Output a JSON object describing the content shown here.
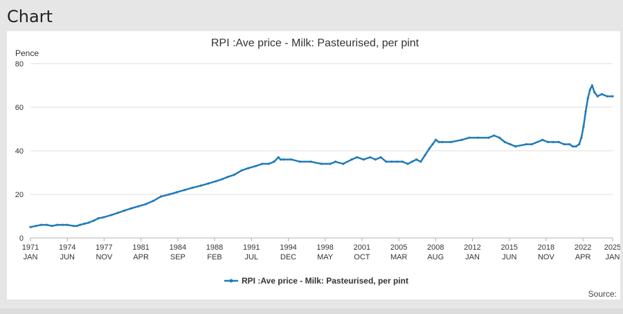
{
  "panel": {
    "heading": "Chart",
    "source_label": "Source:"
  },
  "chart_data": {
    "type": "line",
    "title": "RPI :Ave price - Milk: Pasteurised, per pint",
    "ylabel": "Pence",
    "xlabel": "",
    "ylim": [
      0,
      80
    ],
    "yticks": [
      0,
      20,
      40,
      60,
      80
    ],
    "xlim": [
      1971.0,
      2025.0
    ],
    "xticks": [
      {
        "year": "1971",
        "month": "JAN",
        "x": 1971.0
      },
      {
        "year": "1974",
        "month": "JUN",
        "x": 1974.42
      },
      {
        "year": "1977",
        "month": "NOV",
        "x": 1977.83
      },
      {
        "year": "1981",
        "month": "APR",
        "x": 1981.25
      },
      {
        "year": "1984",
        "month": "SEP",
        "x": 1984.67
      },
      {
        "year": "1988",
        "month": "FEB",
        "x": 1988.08
      },
      {
        "year": "1991",
        "month": "JUL",
        "x": 1991.5
      },
      {
        "year": "1994",
        "month": "DEC",
        "x": 1994.92
      },
      {
        "year": "1998",
        "month": "MAY",
        "x": 1998.33
      },
      {
        "year": "2001",
        "month": "OCT",
        "x": 2001.75
      },
      {
        "year": "2005",
        "month": "MAR",
        "x": 2005.17
      },
      {
        "year": "2008",
        "month": "AUG",
        "x": 2008.58
      },
      {
        "year": "2012",
        "month": "JAN",
        "x": 2012.0
      },
      {
        "year": "2015",
        "month": "JUN",
        "x": 2015.42
      },
      {
        "year": "2018",
        "month": "NOV",
        "x": 2018.83
      },
      {
        "year": "2022",
        "month": "APR",
        "x": 2022.25
      },
      {
        "year": "2025",
        "month": "JAN",
        "x": 2025.0
      }
    ],
    "grid": true,
    "legend_position": "bottom-center",
    "colors": {
      "series": "#1f7ab8",
      "grid": "#dddddd",
      "axis": "#b0b0b0",
      "text": "#333333"
    },
    "series": [
      {
        "name": "RPI :Ave price - Milk: Pasteurised, per pint",
        "x": [
          1971.0,
          1971.5,
          1972.0,
          1972.5,
          1973.0,
          1973.5,
          1974.0,
          1974.4,
          1975.0,
          1975.3,
          1975.6,
          1976.0,
          1976.4,
          1976.9,
          1977.3,
          1977.8,
          1978.5,
          1979.1,
          1979.7,
          1980.3,
          1981.0,
          1981.7,
          1982.4,
          1983.1,
          1983.9,
          1984.6,
          1985.3,
          1986.0,
          1986.8,
          1987.5,
          1988.2,
          1988.8,
          1989.3,
          1989.9,
          1990.6,
          1991.2,
          1991.9,
          1992.5,
          1993.1,
          1993.6,
          1994.0,
          1994.2,
          1994.5,
          1995.2,
          1996.0,
          1997.0,
          1998.0,
          1998.8,
          1999.3,
          2000.0,
          2000.8,
          2001.3,
          2001.9,
          2002.5,
          2003.0,
          2003.5,
          2004.0,
          2004.5,
          2005.0,
          2005.5,
          2006.0,
          2006.4,
          2006.8,
          2007.2,
          2007.6,
          2008.0,
          2008.3,
          2008.6,
          2008.9,
          2009.2,
          2010.0,
          2011.0,
          2011.7,
          2012.5,
          2013.5,
          2014.0,
          2014.5,
          2015.0,
          2015.5,
          2016.0,
          2017.0,
          2017.5,
          2018.5,
          2019.0,
          2019.5,
          2020.0,
          2020.5,
          2021.0,
          2021.3,
          2021.6,
          2021.9,
          2022.1,
          2022.3,
          2022.5,
          2022.7,
          2022.9,
          2023.1,
          2023.3,
          2023.6,
          2024.0,
          2024.5,
          2025.0
        ],
        "values": [
          5,
          5.5,
          6,
          6,
          5.5,
          6,
          6,
          6,
          5.5,
          5.5,
          6,
          6.5,
          7,
          8,
          9,
          9.5,
          10.5,
          11.5,
          12.5,
          13.5,
          14.5,
          15.5,
          17,
          19,
          20,
          21,
          22,
          23,
          24,
          25,
          26,
          27,
          28,
          29,
          31,
          32,
          33,
          34,
          34,
          35,
          37,
          36,
          36,
          36,
          35,
          35,
          34,
          34,
          35,
          34,
          36,
          37,
          36,
          37,
          36,
          37,
          35,
          35,
          35,
          35,
          34,
          35,
          36,
          35,
          38,
          41,
          43,
          45,
          44,
          44,
          44,
          45,
          46,
          46,
          46,
          47,
          46,
          44,
          43,
          42,
          43,
          43,
          45,
          44,
          44,
          44,
          43,
          43,
          42,
          42,
          43,
          46,
          51,
          58,
          64,
          68,
          70,
          67,
          65,
          66,
          65,
          65
        ]
      }
    ]
  }
}
